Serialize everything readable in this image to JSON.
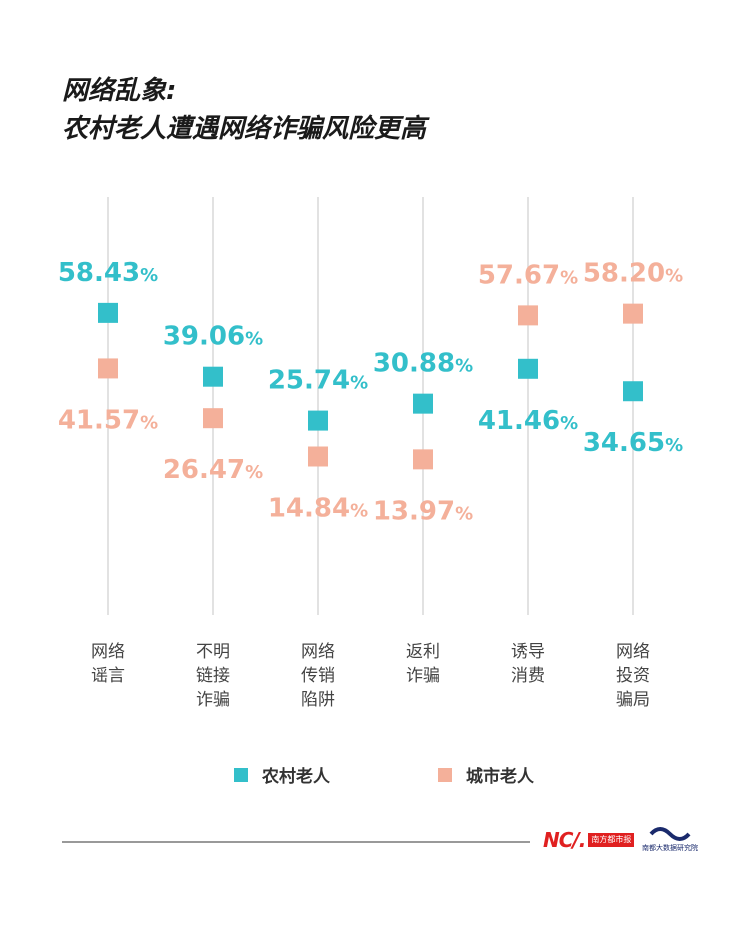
{
  "title": {
    "line1": "网络乱象:",
    "line2": "农村老人遭遇网络诈骗风险更高"
  },
  "colors": {
    "rural": "#33bfca",
    "urban": "#f4b09a",
    "grid": "#d9d9d9"
  },
  "legend": {
    "rural_label": "农村老人",
    "urban_label": "城市老人"
  },
  "footer": {
    "logo_mark": "NC/.",
    "logo_box": "南方都市报",
    "institute": "南都大数据研究院"
  },
  "chart_data": {
    "type": "scatter",
    "title": "网络乱象:农村老人遭遇网络诈骗风险更高",
    "categories": [
      [
        "网络",
        "谣言"
      ],
      [
        "不明",
        "链接",
        "诈骗"
      ],
      [
        "网络",
        "传销",
        "陷阱"
      ],
      [
        "返利",
        "诈骗"
      ],
      [
        "诱导",
        "消费"
      ],
      [
        "网络",
        "投资",
        "骗局"
      ]
    ],
    "unit": "%",
    "series": [
      {
        "name": "农村老人",
        "values": [
          58.43,
          39.06,
          25.74,
          30.88,
          41.46,
          34.65
        ],
        "label_pos": [
          "above",
          "above",
          "above",
          "above",
          "below",
          "below"
        ]
      },
      {
        "name": "城市老人",
        "values": [
          41.57,
          26.47,
          14.84,
          13.97,
          57.67,
          58.2
        ],
        "label_pos": [
          "below",
          "below",
          "below",
          "below",
          "above",
          "above"
        ]
      }
    ],
    "ylim": [
      0,
      100
    ],
    "grid": "vertical",
    "legend": "bottom-center"
  }
}
